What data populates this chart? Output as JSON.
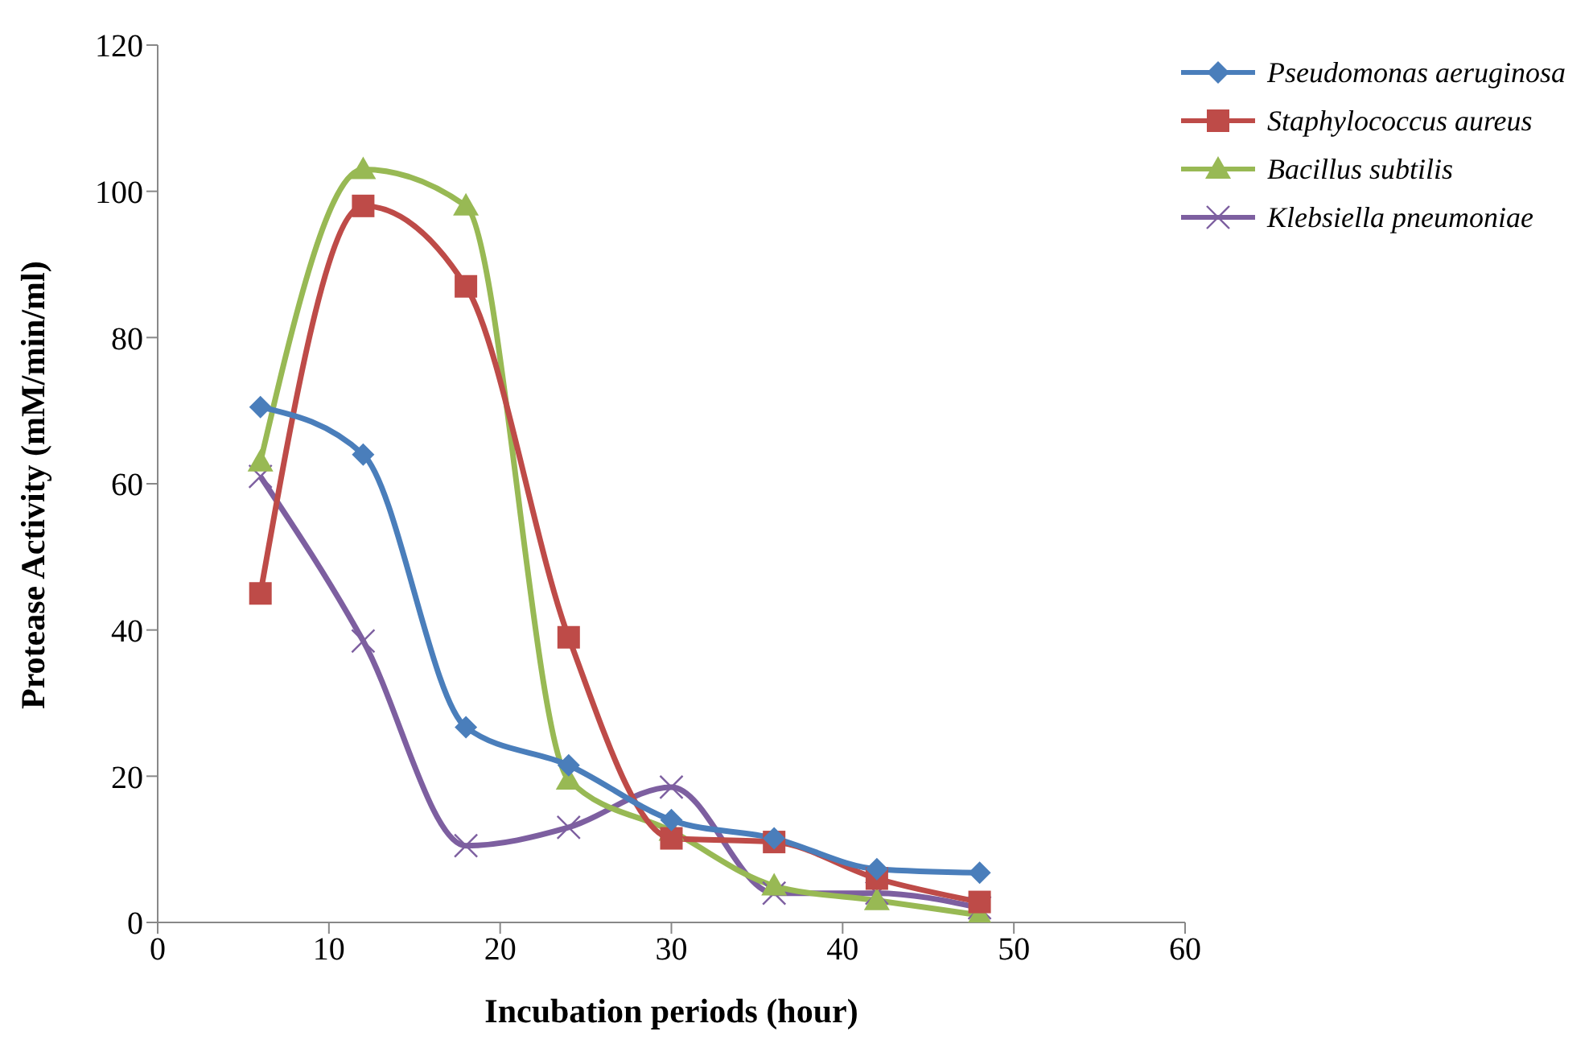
{
  "chart_data": {
    "type": "line",
    "xlabel": "Incubation  periods  (hour)",
    "ylabel": "Protease Activity (mM/min/ml)",
    "x": [
      6,
      12,
      18,
      24,
      30,
      36,
      42,
      48
    ],
    "series": [
      {
        "name": "Pseudomonas aeruginosa",
        "color": "#4a7ebb",
        "marker": "diamond",
        "values": [
          70.5,
          64,
          26.7,
          21.5,
          14,
          11.5,
          7.3,
          6.8
        ]
      },
      {
        "name": "Staphylococcus aureus",
        "color": "#be4b48",
        "marker": "square",
        "values": [
          45,
          98,
          87,
          39,
          11.5,
          11,
          6,
          2.8
        ]
      },
      {
        "name": "Bacillus subtilis",
        "color": "#98b954",
        "marker": "triangle",
        "values": [
          63,
          103,
          98,
          19.5,
          12.5,
          5,
          3,
          1
        ]
      },
      {
        "name": "Klebsiella pneumoniae",
        "color": "#7d5fa0",
        "marker": "cross",
        "values": [
          61,
          38.5,
          10.5,
          13,
          18.5,
          4,
          4,
          2
        ]
      }
    ],
    "xlim": [
      0,
      60
    ],
    "xticks": [
      0,
      10,
      20,
      30,
      40,
      50,
      60
    ],
    "ylim": [
      0,
      120
    ],
    "yticks": [
      0,
      20,
      40,
      60,
      80,
      100,
      120
    ],
    "grid": false,
    "legend": "top right",
    "line_style": "solid"
  }
}
